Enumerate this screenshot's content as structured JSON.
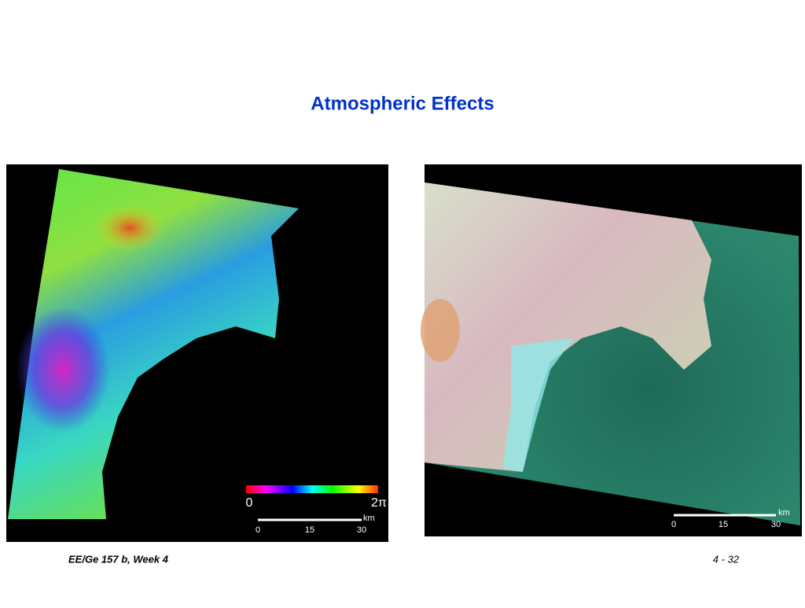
{
  "header": {
    "title": "Atmospheric Effects"
  },
  "left_image": {
    "colorbar_labels": [
      "0",
      "2π"
    ],
    "scale_labels": [
      "0",
      "15",
      "30"
    ],
    "scale_unit": "km"
  },
  "right_image": {
    "scale_labels": [
      "0",
      "15",
      "30"
    ],
    "scale_unit": "km"
  },
  "footer": {
    "left": "EE/Ge 157 b, Week 4",
    "right": "4 - 32"
  }
}
